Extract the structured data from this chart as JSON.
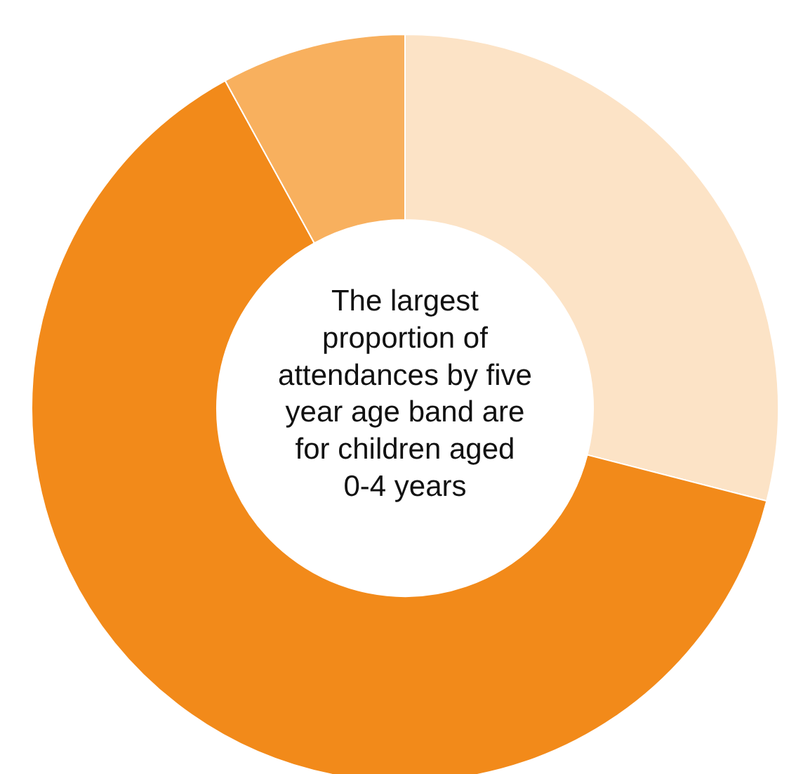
{
  "chart_data": {
    "type": "donut",
    "categories": [
      null,
      null,
      null
    ],
    "values": [
      29,
      63,
      8
    ],
    "colors": [
      "#fce3c6",
      "#f28a1a",
      "#f8b05e"
    ],
    "annotations": [
      "The largest\nproportion of\nattendances by five\nyear age band are\nfor children aged\n0-4 years"
    ]
  }
}
